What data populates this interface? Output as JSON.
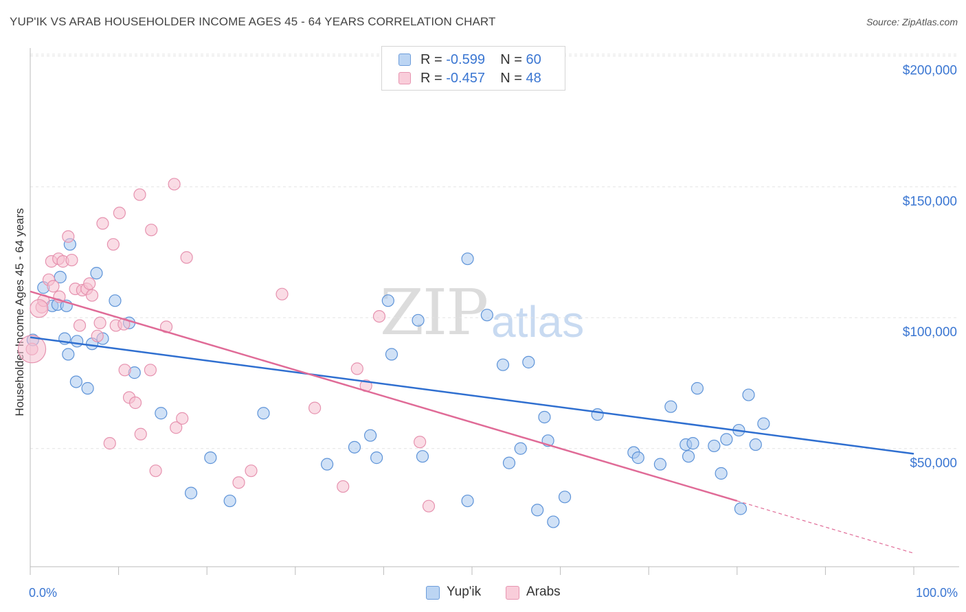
{
  "title": "YUP'IK VS ARAB HOUSEHOLDER INCOME AGES 45 - 64 YEARS CORRELATION CHART",
  "source": "Source: ZipAtlas.com",
  "watermark": {
    "zip": "ZIP",
    "atlas": "atlas"
  },
  "legend": [
    {
      "r_label": "R =",
      "r_value": "-0.599",
      "n_label": "N =",
      "n_value": "60"
    },
    {
      "r_label": "R =",
      "r_value": "-0.457",
      "n_label": "N =",
      "n_value": "48"
    }
  ],
  "bottom_legend": [
    "Yup'ik",
    "Arabs"
  ],
  "colors": {
    "blue_fill": "#a9c8ef",
    "blue_stroke": "#5d93d8",
    "blue_line": "#2f6fd0",
    "pink_fill": "#f6bfd0",
    "pink_stroke": "#e692af",
    "pink_line": "#e06b97",
    "tick_label": "#3a76d2",
    "grid": "#e3e3e3"
  },
  "chart_data": {
    "type": "scatter",
    "title": "YUP'IK VS ARAB HOUSEHOLDER INCOME AGES 45 - 64 YEARS CORRELATION CHART",
    "xlabel": "",
    "ylabel": "Householder Income Ages 45 - 64 years",
    "xlim": [
      0,
      100
    ],
    "ylim": [
      5000,
      210000
    ],
    "x_tick_labels": [
      "0.0%",
      "100.0%"
    ],
    "y_ticks": [
      50000,
      100000,
      150000,
      200000
    ],
    "y_tick_labels": [
      "$50,000",
      "$100,000",
      "$150,000",
      "$200,000"
    ],
    "grid": true,
    "series": [
      {
        "name": "Yup'ik",
        "points": [
          [
            0.3,
            91500
          ],
          [
            1.5,
            111500
          ],
          [
            2.5,
            104500
          ],
          [
            3.1,
            105000
          ],
          [
            3.4,
            115500
          ],
          [
            4.1,
            104500
          ],
          [
            4.5,
            128000
          ],
          [
            3.9,
            92000
          ],
          [
            4.3,
            86000
          ],
          [
            5.3,
            91000
          ],
          [
            7.0,
            90000
          ],
          [
            5.2,
            75500
          ],
          [
            6.5,
            73000
          ],
          [
            7.5,
            117000
          ],
          [
            8.2,
            92000
          ],
          [
            9.6,
            106500
          ],
          [
            11.2,
            98000
          ],
          [
            11.8,
            79000
          ],
          [
            14.8,
            63500
          ],
          [
            18.2,
            33000
          ],
          [
            20.4,
            46500
          ],
          [
            22.6,
            30000
          ],
          [
            26.4,
            63500
          ],
          [
            36.7,
            50500
          ],
          [
            33.6,
            44000
          ],
          [
            38.5,
            55000
          ],
          [
            39.2,
            46500
          ],
          [
            40.5,
            106500
          ],
          [
            40.9,
            86000
          ],
          [
            43.9,
            99000
          ],
          [
            44.4,
            47000
          ],
          [
            49.5,
            122500
          ],
          [
            49.5,
            30000
          ],
          [
            51.7,
            101000
          ],
          [
            53.5,
            82000
          ],
          [
            54.2,
            44500
          ],
          [
            55.5,
            50000
          ],
          [
            56.4,
            83000
          ],
          [
            57.4,
            26500
          ],
          [
            58.2,
            62000
          ],
          [
            58.6,
            53000
          ],
          [
            59.2,
            22000
          ],
          [
            60.5,
            31500
          ],
          [
            64.2,
            63000
          ],
          [
            68.3,
            48500
          ],
          [
            68.8,
            46500
          ],
          [
            71.3,
            44000
          ],
          [
            72.5,
            66000
          ],
          [
            74.2,
            51500
          ],
          [
            74.5,
            47000
          ],
          [
            75.0,
            52000
          ],
          [
            75.5,
            73000
          ],
          [
            77.4,
            51000
          ],
          [
            78.2,
            40500
          ],
          [
            78.8,
            53500
          ],
          [
            80.2,
            57000
          ],
          [
            80.4,
            27000
          ],
          [
            81.3,
            70500
          ],
          [
            82.1,
            51500
          ],
          [
            83.0,
            59500
          ]
        ]
      },
      {
        "name": "Arabs",
        "points": [
          [
            0.2,
            88000
          ],
          [
            1.3,
            104000
          ],
          [
            1.5,
            106500
          ],
          [
            2.1,
            114500
          ],
          [
            2.4,
            121500
          ],
          [
            2.6,
            112000
          ],
          [
            3.2,
            122500
          ],
          [
            3.3,
            108000
          ],
          [
            3.7,
            121500
          ],
          [
            4.3,
            131000
          ],
          [
            4.7,
            122000
          ],
          [
            5.1,
            111000
          ],
          [
            5.6,
            97000
          ],
          [
            5.9,
            110500
          ],
          [
            6.4,
            111000
          ],
          [
            6.7,
            113000
          ],
          [
            7.0,
            108500
          ],
          [
            7.6,
            93000
          ],
          [
            7.9,
            98000
          ],
          [
            8.2,
            136000
          ],
          [
            9.0,
            52000
          ],
          [
            9.4,
            128000
          ],
          [
            9.7,
            97000
          ],
          [
            10.1,
            140000
          ],
          [
            10.6,
            97500
          ],
          [
            10.7,
            80000
          ],
          [
            11.2,
            69500
          ],
          [
            11.9,
            67500
          ],
          [
            12.4,
            147000
          ],
          [
            12.5,
            55500
          ],
          [
            13.6,
            80000
          ],
          [
            13.7,
            133500
          ],
          [
            14.2,
            41500
          ],
          [
            15.4,
            96500
          ],
          [
            16.3,
            151000
          ],
          [
            16.5,
            58000
          ],
          [
            17.2,
            61500
          ],
          [
            17.7,
            123000
          ],
          [
            23.6,
            37000
          ],
          [
            25.0,
            41500
          ],
          [
            28.5,
            109000
          ],
          [
            32.2,
            65500
          ],
          [
            35.4,
            35500
          ],
          [
            37.0,
            80500
          ],
          [
            38.0,
            74000
          ],
          [
            39.5,
            100500
          ],
          [
            44.1,
            52500
          ],
          [
            45.1,
            28000
          ]
        ]
      }
    ],
    "trend_lines": [
      {
        "series": "Yup'ik",
        "x": [
          0,
          100
        ],
        "y": [
          92500,
          48000
        ]
      },
      {
        "series": "Arabs",
        "x": [
          0,
          80
        ],
        "y": [
          110000,
          30000
        ],
        "dashed_extension_to": [
          100,
          10000
        ]
      }
    ]
  }
}
